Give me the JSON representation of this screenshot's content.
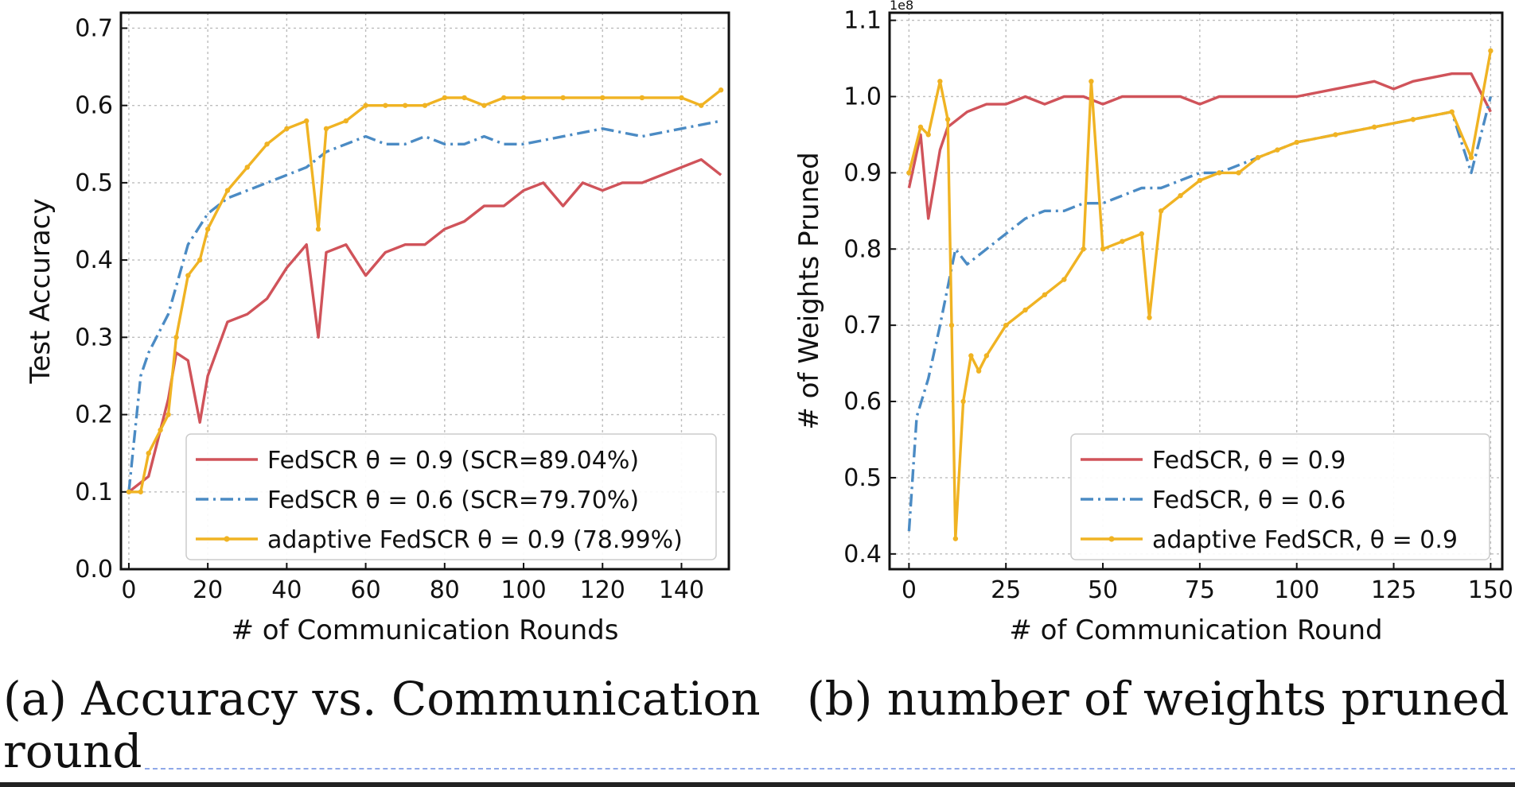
{
  "chart_data": [
    {
      "type": "line",
      "xlabel": "# of Communication Rounds",
      "ylabel": "Test Accuracy",
      "xlim": [
        -2,
        152
      ],
      "ylim": [
        0.0,
        0.72
      ],
      "xticks": [
        0,
        20,
        40,
        60,
        80,
        100,
        120,
        140
      ],
      "yticks": [
        0.0,
        0.1,
        0.2,
        0.3,
        0.4,
        0.5,
        0.6,
        0.7
      ],
      "xtick_labels": [
        "0",
        "20",
        "40",
        "60",
        "80",
        "100",
        "120",
        "140"
      ],
      "ytick_labels": [
        "0.0",
        "0.1",
        "0.2",
        "0.3",
        "0.4",
        "0.5",
        "0.6",
        "0.7"
      ],
      "grid": true,
      "legend_position": "bottom-right",
      "series": [
        {
          "name": "FedSCR θ = 0.9 (SCR=89.04%)",
          "color": "#d0535a",
          "style": "solid",
          "marker": "none",
          "x": [
            0,
            5,
            10,
            12,
            15,
            18,
            20,
            25,
            30,
            35,
            40,
            45,
            48,
            50,
            55,
            60,
            65,
            70,
            75,
            80,
            85,
            90,
            95,
            100,
            105,
            110,
            115,
            120,
            125,
            130,
            135,
            140,
            145,
            150
          ],
          "y": [
            0.1,
            0.12,
            0.22,
            0.28,
            0.27,
            0.19,
            0.25,
            0.32,
            0.33,
            0.35,
            0.39,
            0.42,
            0.3,
            0.41,
            0.42,
            0.38,
            0.41,
            0.42,
            0.42,
            0.44,
            0.45,
            0.47,
            0.47,
            0.49,
            0.5,
            0.47,
            0.5,
            0.49,
            0.5,
            0.5,
            0.51,
            0.52,
            0.53,
            0.51
          ]
        },
        {
          "name": "FedSCR θ = 0.6 (SCR=79.70%)",
          "color": "#4b8bc4",
          "style": "dashdot",
          "marker": "none",
          "x": [
            0,
            3,
            5,
            8,
            10,
            15,
            20,
            25,
            30,
            35,
            40,
            45,
            50,
            55,
            60,
            65,
            70,
            75,
            80,
            85,
            90,
            95,
            100,
            110,
            120,
            130,
            140,
            150
          ],
          "y": [
            0.1,
            0.25,
            0.28,
            0.31,
            0.33,
            0.42,
            0.46,
            0.48,
            0.49,
            0.5,
            0.51,
            0.52,
            0.54,
            0.55,
            0.56,
            0.55,
            0.55,
            0.56,
            0.55,
            0.55,
            0.56,
            0.55,
            0.55,
            0.56,
            0.57,
            0.56,
            0.57,
            0.58
          ]
        },
        {
          "name": "adaptive FedSCR θ = 0.9 (78.99%)",
          "color": "#f0b323",
          "style": "solid",
          "marker": "dot",
          "x": [
            0,
            3,
            5,
            8,
            10,
            12,
            15,
            18,
            20,
            25,
            30,
            35,
            40,
            45,
            48,
            50,
            55,
            60,
            65,
            70,
            75,
            80,
            85,
            90,
            95,
            100,
            110,
            120,
            130,
            140,
            145,
            150
          ],
          "y": [
            0.1,
            0.1,
            0.15,
            0.18,
            0.2,
            0.3,
            0.38,
            0.4,
            0.44,
            0.49,
            0.52,
            0.55,
            0.57,
            0.58,
            0.44,
            0.57,
            0.58,
            0.6,
            0.6,
            0.6,
            0.6,
            0.61,
            0.61,
            0.6,
            0.61,
            0.61,
            0.61,
            0.61,
            0.61,
            0.61,
            0.6,
            0.62
          ]
        }
      ]
    },
    {
      "type": "line",
      "xlabel": "# of Communication Round",
      "ylabel": "# of Weights Pruned",
      "offset_text": "1e8",
      "xlim": [
        -5,
        153
      ],
      "ylim": [
        0.38,
        1.11
      ],
      "xticks": [
        0,
        25,
        50,
        75,
        100,
        125,
        150
      ],
      "yticks": [
        0.4,
        0.5,
        0.6,
        0.7,
        0.8,
        0.9,
        1.0,
        1.1
      ],
      "xtick_labels": [
        "0",
        "25",
        "50",
        "75",
        "100",
        "125",
        "150"
      ],
      "ytick_labels": [
        "0.4",
        "0.5",
        "0.6",
        "0.7",
        "0.8",
        "0.9",
        "1.0",
        "1.1"
      ],
      "grid": true,
      "legend_position": "bottom-right",
      "series": [
        {
          "name": "FedSCR, θ = 0.9",
          "color": "#d0535a",
          "style": "solid",
          "marker": "none",
          "x": [
            0,
            3,
            5,
            8,
            10,
            15,
            20,
            25,
            30,
            35,
            40,
            45,
            50,
            55,
            60,
            65,
            70,
            75,
            80,
            85,
            90,
            95,
            100,
            110,
            120,
            125,
            130,
            140,
            145,
            150
          ],
          "y": [
            0.88,
            0.95,
            0.84,
            0.93,
            0.96,
            0.98,
            0.99,
            0.99,
            1.0,
            0.99,
            1.0,
            1.0,
            0.99,
            1.0,
            1.0,
            1.0,
            1.0,
            0.99,
            1.0,
            1.0,
            1.0,
            1.0,
            1.0,
            1.01,
            1.02,
            1.01,
            1.02,
            1.03,
            1.03,
            0.98
          ]
        },
        {
          "name": "FedSCR, θ = 0.6",
          "color": "#4b8bc4",
          "style": "dashdot",
          "marker": "none",
          "x": [
            0,
            2,
            5,
            8,
            10,
            12,
            15,
            20,
            25,
            30,
            35,
            40,
            45,
            50,
            55,
            60,
            65,
            70,
            75,
            80,
            85,
            90,
            95,
            100,
            110,
            120,
            130,
            140,
            145,
            150
          ],
          "y": [
            0.43,
            0.58,
            0.63,
            0.7,
            0.75,
            0.8,
            0.78,
            0.8,
            0.82,
            0.84,
            0.85,
            0.85,
            0.86,
            0.86,
            0.87,
            0.88,
            0.88,
            0.89,
            0.9,
            0.9,
            0.91,
            0.92,
            0.93,
            0.94,
            0.95,
            0.96,
            0.97,
            0.98,
            0.9,
            1.0
          ]
        },
        {
          "name": "adaptive FedSCR, θ = 0.9",
          "color": "#f0b323",
          "style": "solid",
          "marker": "dot",
          "x": [
            0,
            3,
            5,
            8,
            10,
            11,
            12,
            14,
            16,
            18,
            20,
            25,
            30,
            35,
            40,
            45,
            47,
            50,
            55,
            60,
            62,
            65,
            70,
            75,
            80,
            85,
            90,
            95,
            100,
            110,
            120,
            130,
            140,
            145,
            150
          ],
          "y": [
            0.9,
            0.96,
            0.95,
            1.02,
            0.97,
            0.7,
            0.42,
            0.6,
            0.66,
            0.64,
            0.66,
            0.7,
            0.72,
            0.74,
            0.76,
            0.8,
            1.02,
            0.8,
            0.81,
            0.82,
            0.71,
            0.85,
            0.87,
            0.89,
            0.9,
            0.9,
            0.92,
            0.93,
            0.94,
            0.95,
            0.96,
            0.97,
            0.98,
            0.92,
            1.06
          ]
        }
      ]
    }
  ],
  "captions": {
    "a_line1": "(a)  Accuracy  vs.  Communication",
    "a_line2": "round",
    "b": "(b) number of weights pruned"
  }
}
